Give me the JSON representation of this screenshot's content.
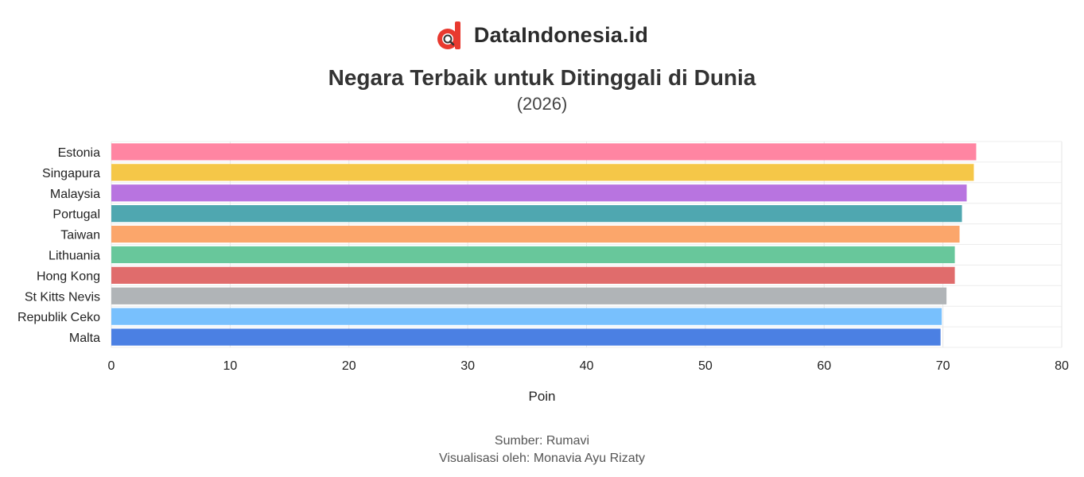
{
  "brand": {
    "name": "DataIndonesia.id",
    "logo_icon": "dataindonesia-logo-icon",
    "logo_color": "#e8392f"
  },
  "chart_data": {
    "type": "bar",
    "orientation": "horizontal",
    "title": "Negara Terbaik untuk Ditinggali di Dunia",
    "subtitle": "(2026)",
    "xlabel": "Poin",
    "ylabel": "",
    "xlim": [
      0,
      80
    ],
    "xticks": [
      0,
      10,
      20,
      30,
      40,
      50,
      60,
      70,
      80
    ],
    "grid": true,
    "legend": "none",
    "categories": [
      "Estonia",
      "Singapura",
      "Malaysia",
      "Portugal",
      "Taiwan",
      "Lithuania",
      "Hong Kong",
      "St Kitts Nevis",
      "Republik Ceko",
      "Malta"
    ],
    "values": [
      72.8,
      72.6,
      72.0,
      71.6,
      71.4,
      71.0,
      71.0,
      70.3,
      69.9,
      69.8
    ],
    "colors": [
      "#ff85a2",
      "#f5c748",
      "#b874e0",
      "#4fa7b0",
      "#fba66b",
      "#68c79b",
      "#e06c6c",
      "#b0b4b7",
      "#78c0fd",
      "#4b80e3"
    ]
  },
  "footer": {
    "source": "Sumber: Rumavi",
    "credit": "Visualisasi oleh: Monavia Ayu Rizaty"
  }
}
